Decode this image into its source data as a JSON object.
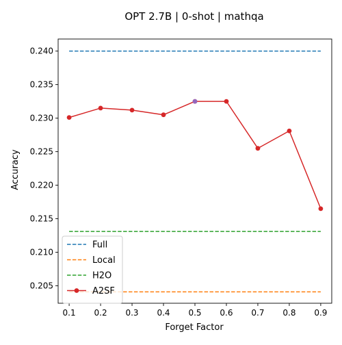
{
  "chart_data": {
    "type": "line",
    "title": "OPT 2.7B | 0-shot | mathqa",
    "xlabel": "Forget Factor",
    "ylabel": "Accuracy",
    "x": [
      0.1,
      0.2,
      0.3,
      0.4,
      0.5,
      0.6,
      0.7,
      0.8,
      0.9
    ],
    "xlim": [
      0.065,
      0.935
    ],
    "ylim": [
      0.2024,
      0.2418
    ],
    "xticks": [
      "0.1",
      "0.2",
      "0.3",
      "0.4",
      "0.5",
      "0.6",
      "0.7",
      "0.8",
      "0.9"
    ],
    "yticks": [
      "0.205",
      "0.210",
      "0.215",
      "0.220",
      "0.225",
      "0.230",
      "0.235",
      "0.240"
    ],
    "grid": false,
    "legend_position": "lower-left",
    "series": [
      {
        "name": "Full",
        "style": "dashed",
        "color": "#1f77b4",
        "values": [
          0.24,
          0.24,
          0.24,
          0.24,
          0.24,
          0.24,
          0.24,
          0.24,
          0.24
        ]
      },
      {
        "name": "Local",
        "style": "dashed",
        "color": "#ff7f0e",
        "values": [
          0.2041,
          0.2041,
          0.2041,
          0.2041,
          0.2041,
          0.2041,
          0.2041,
          0.2041,
          0.2041
        ]
      },
      {
        "name": "H2O",
        "style": "dashed",
        "color": "#2ca02c",
        "values": [
          0.2131,
          0.2131,
          0.2131,
          0.2131,
          0.2131,
          0.2131,
          0.2131,
          0.2131,
          0.2131
        ]
      },
      {
        "name": "A2SF",
        "style": "solid-markers",
        "color": "#d62728",
        "values": [
          0.2301,
          0.2315,
          0.2312,
          0.2305,
          0.2325,
          0.2325,
          0.2255,
          0.2281,
          0.2165
        ]
      }
    ],
    "highlight_point": {
      "x": 0.5,
      "y": 0.2325,
      "color": "#9467bd"
    }
  }
}
